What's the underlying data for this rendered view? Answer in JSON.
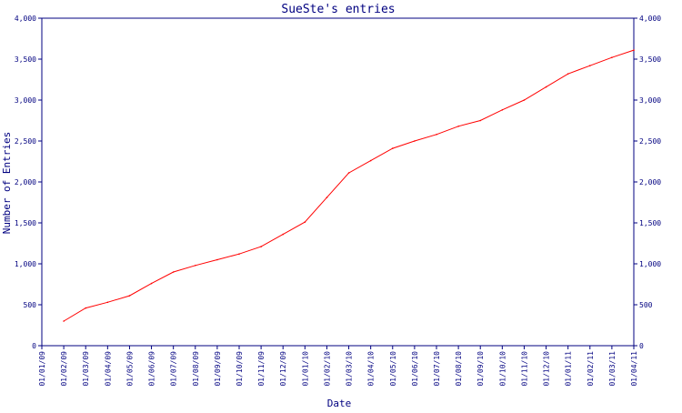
{
  "chart_data": {
    "type": "line",
    "title": "SueSte's entries",
    "xlabel": "Date",
    "ylabel": "Number of Entries",
    "ylim": [
      0,
      4000
    ],
    "y_ticks": [
      0,
      500,
      1000,
      1500,
      2000,
      2500,
      3000,
      3500,
      4000
    ],
    "y_tick_labels": [
      "0",
      "500",
      "1,000",
      "1,500",
      "2,000",
      "2,500",
      "3,000",
      "3,500",
      "4,000"
    ],
    "x_tick_labels": [
      "01/01/09",
      "01/02/09",
      "01/03/09",
      "01/04/09",
      "01/05/09",
      "01/06/09",
      "01/07/09",
      "01/08/09",
      "01/09/09",
      "01/10/09",
      "01/11/09",
      "01/12/09",
      "01/01/10",
      "01/02/10",
      "01/03/10",
      "01/04/10",
      "01/05/10",
      "01/06/10",
      "01/07/10",
      "01/08/10",
      "01/09/10",
      "01/10/10",
      "01/11/10",
      "01/12/10",
      "01/01/11",
      "01/02/11",
      "01/03/11",
      "01/04/11"
    ],
    "grid": false,
    "legend": "none",
    "series": [
      {
        "color": "#ff0000",
        "points": [
          {
            "x": "01/02/09",
            "y": 300
          },
          {
            "x": "01/03/09",
            "y": 460
          },
          {
            "x": "01/04/09",
            "y": 530
          },
          {
            "x": "01/05/09",
            "y": 610
          },
          {
            "x": "01/06/09",
            "y": 760
          },
          {
            "x": "01/07/09",
            "y": 900
          },
          {
            "x": "01/08/09",
            "y": 980
          },
          {
            "x": "01/09/09",
            "y": 1050
          },
          {
            "x": "01/10/09",
            "y": 1120
          },
          {
            "x": "01/11/09",
            "y": 1210
          },
          {
            "x": "01/12/09",
            "y": 1360
          },
          {
            "x": "01/01/10",
            "y": 1510
          },
          {
            "x": "01/02/10",
            "y": 1810
          },
          {
            "x": "01/03/10",
            "y": 2110
          },
          {
            "x": "01/04/10",
            "y": 2260
          },
          {
            "x": "01/05/10",
            "y": 2410
          },
          {
            "x": "01/06/10",
            "y": 2500
          },
          {
            "x": "01/07/10",
            "y": 2580
          },
          {
            "x": "01/08/10",
            "y": 2680
          },
          {
            "x": "01/09/10",
            "y": 2750
          },
          {
            "x": "01/10/10",
            "y": 2880
          },
          {
            "x": "01/11/10",
            "y": 3000
          },
          {
            "x": "01/12/10",
            "y": 3160
          },
          {
            "x": "01/01/11",
            "y": 3320
          },
          {
            "x": "01/02/11",
            "y": 3420
          },
          {
            "x": "01/03/11",
            "y": 3520
          },
          {
            "x": "01/04/11",
            "y": 3610
          }
        ]
      }
    ],
    "colors": {
      "axis": "#000080",
      "text": "#000080",
      "background": "#ffffff"
    }
  }
}
